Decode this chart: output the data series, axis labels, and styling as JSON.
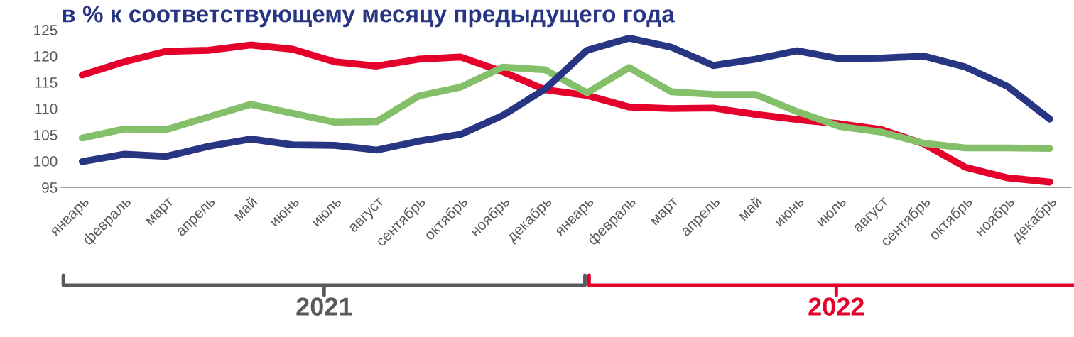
{
  "chart_data": {
    "type": "line",
    "title": "в % к соответствующему месяцу предыдущего года",
    "categories": [
      "январь",
      "февраль",
      "март",
      "апрель",
      "май",
      "июнь",
      "июль",
      "август",
      "сентябрь",
      "октябрь",
      "ноябрь",
      "декабрь",
      "январь",
      "февраль",
      "март",
      "апрель",
      "май",
      "июнь",
      "июль",
      "август",
      "сентябрь",
      "октябрь",
      "ноябрь",
      "декабрь"
    ],
    "series": [
      {
        "color": "#e4002b",
        "values": [
          116.4,
          118.9,
          120.9,
          121.1,
          122.1,
          121.3,
          118.9,
          118.1,
          119.4,
          119.8,
          117.0,
          113.6,
          112.5,
          110.3,
          110.0,
          110.1,
          108.9,
          107.9,
          107.1,
          106.0,
          103.3,
          98.8,
          96.8,
          96.0
        ]
      },
      {
        "color": "#84c06a",
        "values": [
          104.4,
          106.1,
          106.0,
          108.4,
          110.8,
          109.1,
          107.4,
          107.5,
          112.4,
          114.1,
          117.9,
          117.4,
          113.0,
          117.8,
          113.2,
          112.7,
          112.7,
          109.4,
          106.6,
          105.5,
          103.4,
          102.5,
          102.5,
          102.4
        ]
      },
      {
        "color": "#283583",
        "values": [
          99.9,
          101.3,
          100.9,
          102.8,
          104.2,
          103.1,
          103.0,
          102.1,
          103.8,
          105.1,
          108.7,
          113.7,
          121.1,
          123.4,
          121.7,
          118.2,
          119.4,
          121.0,
          119.5,
          119.6,
          120.0,
          117.9,
          114.2,
          108.0
        ]
      }
    ],
    "ylim": [
      95,
      125
    ],
    "yticks": [
      95,
      100,
      105,
      110,
      115,
      120,
      125
    ],
    "grid": false,
    "legend": false,
    "marker": "none",
    "line_style": "solid",
    "annotations": [
      "2021",
      "2022"
    ]
  }
}
